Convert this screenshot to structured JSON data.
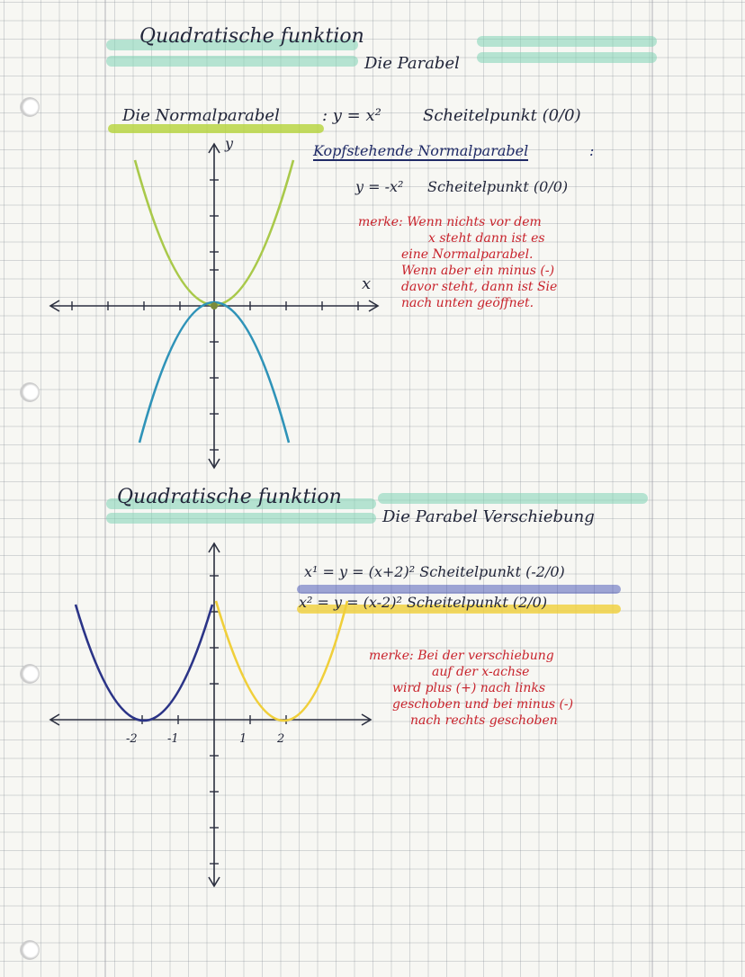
{
  "section1": {
    "title": "Quadratische funktion",
    "subtitle": "Die Parabel",
    "normalparabel": {
      "label": "Die Normalparabel",
      "equation": ": y = x²",
      "vertex_text": "Scheitelpunkt (0/0)"
    },
    "kopfstehend": {
      "label": "Kopfstehende Normalparabel",
      "colon": ":",
      "equation": "y = -x²",
      "vertex_text": "Scheitelpunkt (0/0)"
    },
    "merke_lines": [
      "merke: Wenn nichts vor dem",
      "x steht dann ist es",
      "eine Normalparabel.",
      "Wenn aber ein minus (-)",
      "davor steht, dann ist Sie",
      "nach unten geöffnet."
    ],
    "axis_y_label": "y",
    "axis_x_label": "x"
  },
  "section2": {
    "title": "Quadratische funktion",
    "subtitle": "Die Parabel Verschiebung",
    "eq1": "x¹ = y = (x+2)² Scheitelpunkt (-2/0)",
    "eq2": "x² = y = (x-2)² Scheitelpunkt (2/0)",
    "merke_lines": [
      "merke: Bei der verschiebung",
      "auf der x-achse",
      "wird plus (+) nach links",
      "geschoben und bei minus (-)",
      "nach rechts geschoben"
    ],
    "tick_labels": [
      "-2",
      "-1",
      "1",
      "2"
    ]
  },
  "colors": {
    "green": "#a9c94a",
    "blue": "#2f93b8",
    "navy": "#2b3487",
    "yellow": "#f0cf3a",
    "red": "#c8232c",
    "mint": "#7fd4b4"
  }
}
